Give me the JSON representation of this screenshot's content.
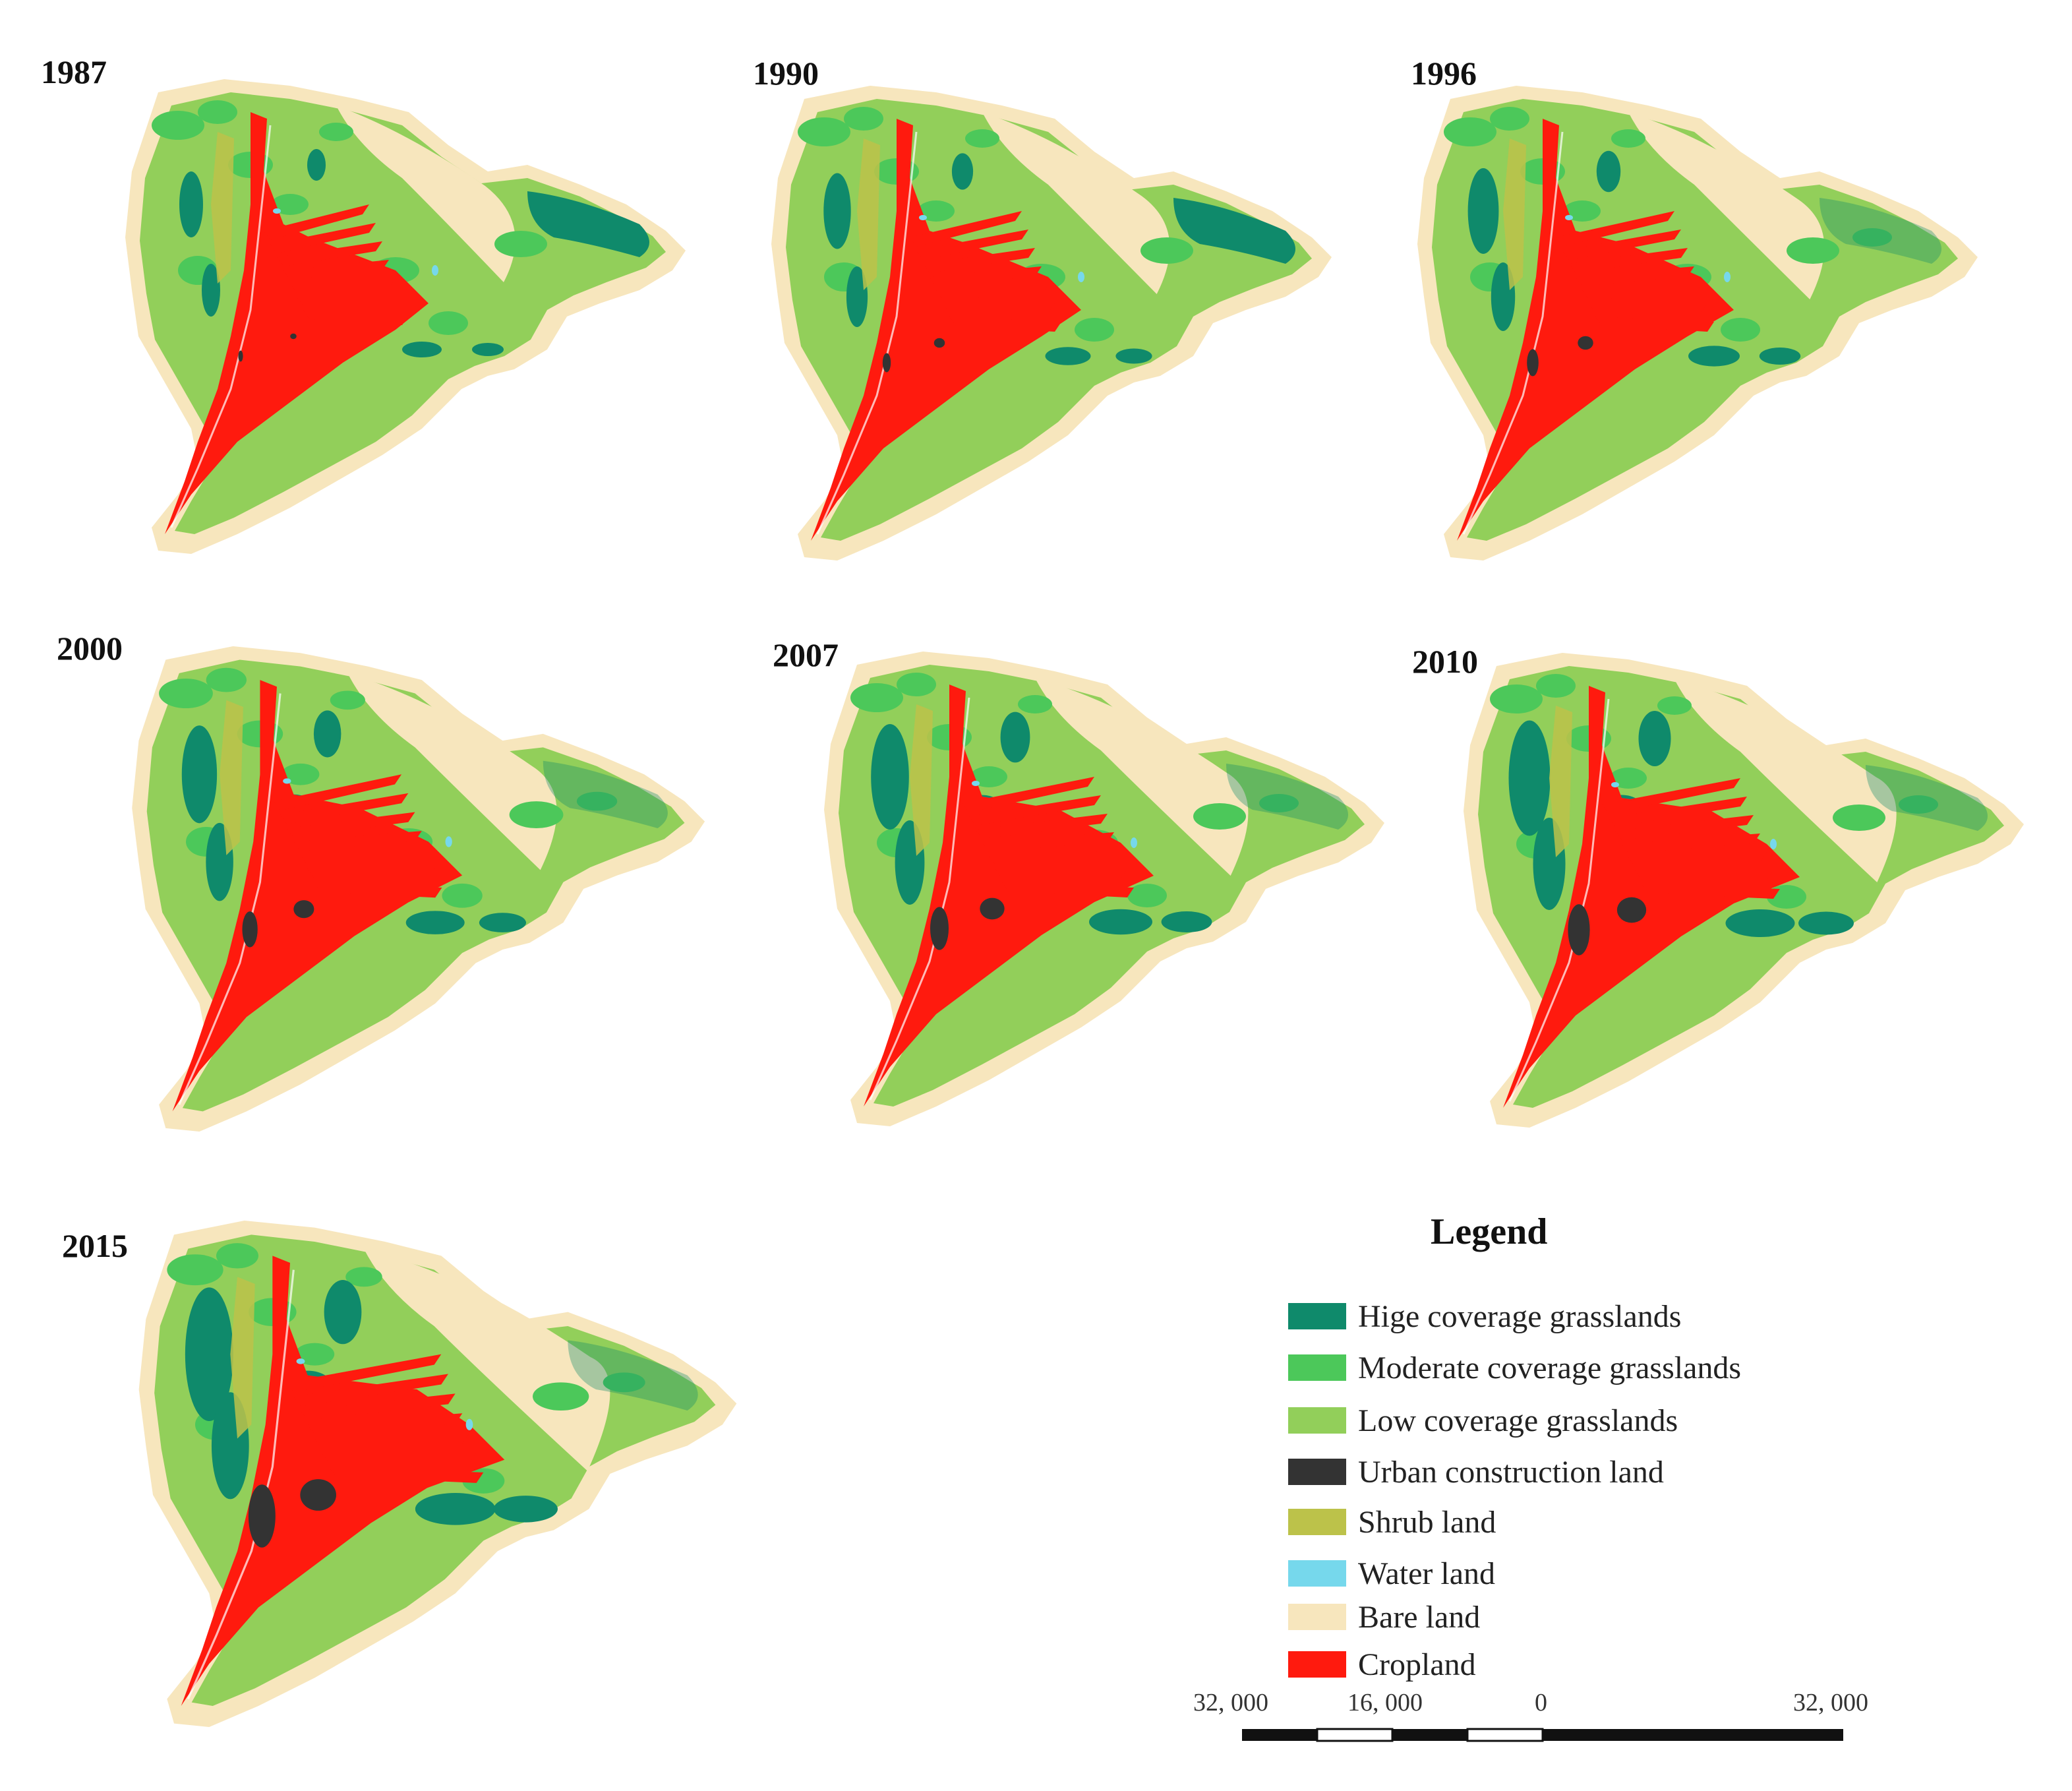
{
  "maps": [
    {
      "year": "1987"
    },
    {
      "year": "1990"
    },
    {
      "year": "1996"
    },
    {
      "year": "2000"
    },
    {
      "year": "2007"
    },
    {
      "year": "2010"
    },
    {
      "year": "2015"
    }
  ],
  "legend": {
    "title": "Legend",
    "items": [
      {
        "label": "Hige coverage grasslands",
        "color": "#0f8a6b"
      },
      {
        "label": "Moderate coverage grasslands",
        "color": "#4cc85a"
      },
      {
        "label": "Low coverage grasslands",
        "color": "#92cf5a"
      },
      {
        "label": "Urban construction land",
        "color": "#333333"
      },
      {
        "label": "Shrub land",
        "color": "#bcc24a"
      },
      {
        "label": "Water land",
        "color": "#76d8ec"
      },
      {
        "label": "Bare land",
        "color": "#f7e6bd"
      },
      {
        "label": "Cropland",
        "color": "#ff1a0e"
      }
    ]
  },
  "scale": {
    "labels": [
      "32, 000",
      "16, 000",
      "0",
      "32, 000"
    ]
  }
}
